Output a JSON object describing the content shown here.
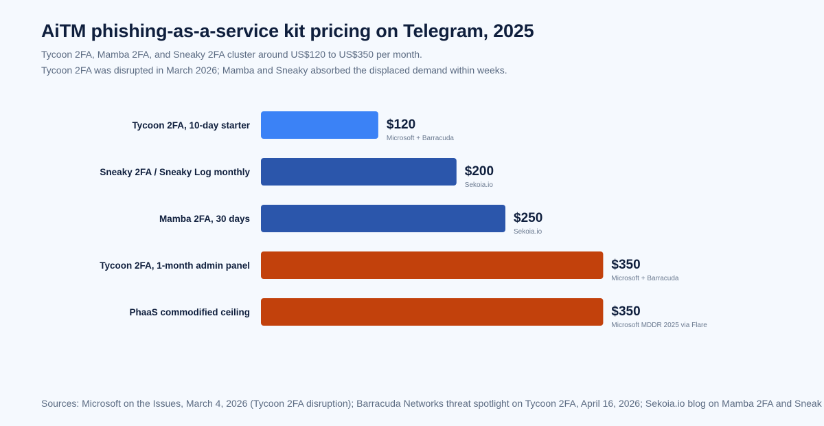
{
  "header": {
    "title": "AiTM phishing-as-a-service kit pricing on Telegram, 2025",
    "subtitle_1": "Tycoon 2FA, Mamba 2FA, and Sneaky 2FA cluster around US$120 to US$350 per month.",
    "subtitle_2": "Tycoon 2FA was disrupted in March 2026; Mamba and Sneaky absorbed the displaced demand within weeks."
  },
  "chart_data": {
    "type": "bar",
    "orientation": "horizontal",
    "categories": [
      "Tycoon 2FA, 10-day starter",
      "Sneaky 2FA / Sneaky Log monthly",
      "Mamba 2FA, 30 days",
      "Tycoon 2FA, 1-month admin panel",
      "PhaaS commodified ceiling"
    ],
    "values": [
      120,
      200,
      250,
      350,
      350
    ],
    "value_labels": [
      "$120",
      "$200",
      "$250",
      "$350",
      "$350"
    ],
    "sources": [
      "Microsoft + Barracuda",
      "Sekoia.io",
      "Sekoia.io",
      "Microsoft + Barracuda",
      "Microsoft MDDR 2025 via Flare"
    ],
    "colors": [
      "#3b82f6",
      "#2b56ab",
      "#2b56ab",
      "#c2410c",
      "#c2410c"
    ],
    "xlim": [
      0,
      500
    ],
    "grid": false,
    "xlabel": "",
    "ylabel": ""
  },
  "footer": {
    "sources": "Sources: Microsoft on the Issues, March 4, 2026 (Tycoon 2FA disruption); Barracuda Networks threat spotlight on Tycoon 2FA, April 16, 2026; Sekoia.io blog on Mamba 2FA and Sneak"
  }
}
